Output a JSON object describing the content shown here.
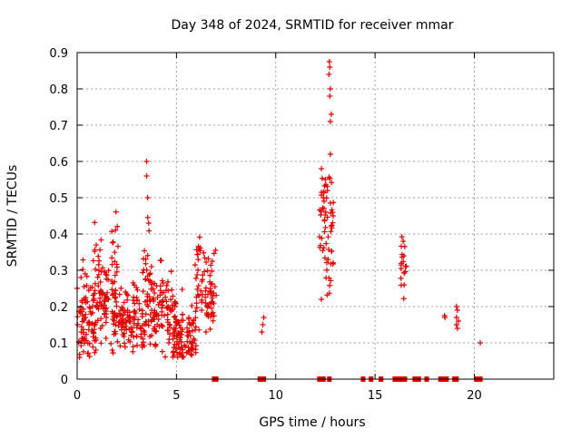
{
  "chart_data": {
    "type": "scatter",
    "title": "Day 348 of 2024, SRMTID for receiver mmar",
    "xlabel": "GPS time / hours",
    "ylabel": "SRMTID / TECUs",
    "xlim": [
      0,
      24
    ],
    "ylim": [
      0,
      0.9
    ],
    "xticks": [
      0,
      5,
      10,
      15,
      20
    ],
    "yticks": [
      "0",
      "0.1",
      "0.2",
      "0.3",
      "0.4",
      "0.5",
      "0.6",
      "0.7",
      "0.8",
      "0.9"
    ],
    "grid": true,
    "marker": "+",
    "color": "#e00000",
    "clusters": [
      {
        "x0": 0.0,
        "x1": 1.0,
        "center": 0.17,
        "spread": 0.07,
        "count": 90
      },
      {
        "x0": 0.8,
        "x1": 1.3,
        "center": 0.32,
        "spread": 0.06,
        "count": 18
      },
      {
        "x0": 1.0,
        "x1": 2.0,
        "center": 0.2,
        "spread": 0.06,
        "count": 80
      },
      {
        "x0": 1.7,
        "x1": 2.1,
        "center": 0.36,
        "spread": 0.06,
        "count": 14
      },
      {
        "x0": 2.0,
        "x1": 3.5,
        "center": 0.17,
        "spread": 0.05,
        "count": 110
      },
      {
        "x0": 3.3,
        "x1": 3.9,
        "center": 0.3,
        "spread": 0.07,
        "count": 24
      },
      {
        "x0": 3.5,
        "x1": 5.0,
        "center": 0.18,
        "spread": 0.06,
        "count": 110
      },
      {
        "x0": 4.8,
        "x1": 6.0,
        "center": 0.12,
        "spread": 0.05,
        "count": 95
      },
      {
        "x0": 5.9,
        "x1": 7.0,
        "center": 0.24,
        "spread": 0.06,
        "count": 70
      },
      {
        "x0": 6.0,
        "x1": 6.2,
        "center": 0.35,
        "spread": 0.03,
        "count": 10
      },
      {
        "x0": 12.2,
        "x1": 12.9,
        "center": 0.4,
        "spread": 0.1,
        "count": 60
      },
      {
        "x0": 16.3,
        "x1": 16.6,
        "center": 0.32,
        "spread": 0.05,
        "count": 20
      }
    ],
    "points": [
      [
        3.5,
        0.6
      ],
      [
        3.5,
        0.56
      ],
      [
        3.55,
        0.5
      ],
      [
        3.6,
        0.43
      ],
      [
        9.3,
        0.13
      ],
      [
        9.35,
        0.15
      ],
      [
        9.4,
        0.17
      ],
      [
        12.7,
        0.875
      ],
      [
        12.72,
        0.86
      ],
      [
        12.68,
        0.84
      ],
      [
        12.75,
        0.8
      ],
      [
        12.72,
        0.78
      ],
      [
        12.8,
        0.73
      ],
      [
        12.75,
        0.71
      ],
      [
        12.75,
        0.62
      ],
      [
        12.3,
        0.58
      ],
      [
        12.5,
        0.55
      ],
      [
        12.6,
        0.52
      ],
      [
        12.4,
        0.5
      ],
      [
        12.3,
        0.22
      ],
      [
        18.5,
        0.175
      ],
      [
        18.52,
        0.17
      ],
      [
        19.1,
        0.2
      ],
      [
        19.15,
        0.19
      ],
      [
        19.1,
        0.17
      ],
      [
        19.2,
        0.16
      ],
      [
        19.1,
        0.15
      ],
      [
        19.15,
        0.14
      ],
      [
        20.3,
        0.1
      ]
    ],
    "zero_points_x": [
      6.9,
      7.0,
      9.2,
      9.3,
      9.4,
      12.2,
      12.3,
      12.4,
      12.7,
      14.4,
      14.8,
      15.3,
      16.0,
      16.1,
      16.2,
      16.3,
      16.4,
      16.5,
      17.0,
      17.1,
      17.2,
      17.6,
      18.3,
      18.4,
      18.5,
      18.6,
      19.0,
      19.1,
      20.1,
      20.3
    ]
  }
}
